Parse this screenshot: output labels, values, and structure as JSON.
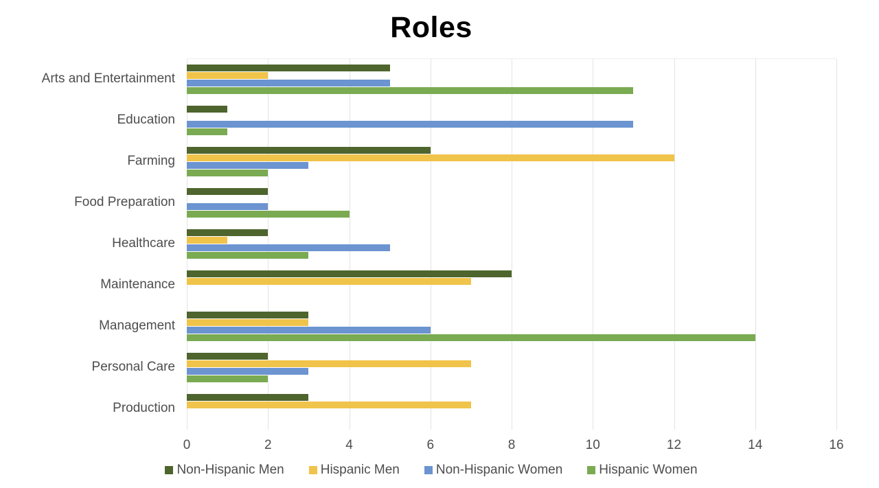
{
  "chart_data": {
    "type": "bar",
    "orientation": "horizontal",
    "title": "Roles",
    "categories": [
      "Arts and Entertainment",
      "Education",
      "Farming",
      "Food Preparation",
      "Healthcare",
      "Maintenance",
      "Management",
      "Personal Care",
      "Production"
    ],
    "series": [
      {
        "name": "Non-Hispanic Men",
        "color": "#4e652e",
        "values": [
          5,
          1,
          6,
          2,
          2,
          8,
          3,
          2,
          3
        ]
      },
      {
        "name": "Hispanic Men",
        "color": "#f0c34a",
        "values": [
          2,
          0,
          12,
          0,
          1,
          7,
          3,
          7,
          7
        ]
      },
      {
        "name": "Non-Hispanic Women",
        "color": "#6b94d0",
        "values": [
          5,
          11,
          3,
          2,
          5,
          0,
          6,
          3,
          0
        ]
      },
      {
        "name": "Hispanic Women",
        "color": "#7aab52",
        "values": [
          11,
          1,
          2,
          4,
          3,
          0,
          14,
          2,
          0
        ]
      }
    ],
    "xlabel": "",
    "ylabel": "",
    "xlim": [
      0,
      16
    ],
    "xticks": [
      0,
      2,
      4,
      6,
      8,
      10,
      12,
      14,
      16
    ],
    "grid": "vertical-only",
    "gridline_color": "#e3e3e3",
    "legend_position": "bottom",
    "text_color": "#4d4d4d",
    "title_color": "#000000",
    "background": "#ffffff"
  }
}
